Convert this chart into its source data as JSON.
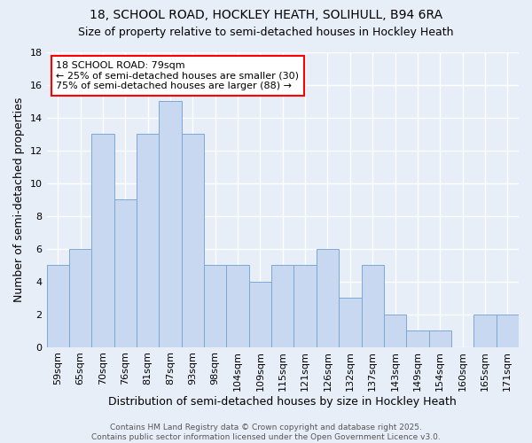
{
  "title": "18, SCHOOL ROAD, HOCKLEY HEATH, SOLIHULL, B94 6RA",
  "subtitle": "Size of property relative to semi-detached houses in Hockley Heath",
  "xlabel": "Distribution of semi-detached houses by size in Hockley Heath",
  "ylabel": "Number of semi-detached properties",
  "categories": [
    "59sqm",
    "65sqm",
    "70sqm",
    "76sqm",
    "81sqm",
    "87sqm",
    "93sqm",
    "98sqm",
    "104sqm",
    "109sqm",
    "115sqm",
    "121sqm",
    "126sqm",
    "132sqm",
    "137sqm",
    "143sqm",
    "149sqm",
    "154sqm",
    "160sqm",
    "165sqm",
    "171sqm"
  ],
  "values": [
    5,
    6,
    13,
    9,
    13,
    15,
    13,
    5,
    5,
    4,
    5,
    5,
    6,
    3,
    5,
    2,
    1,
    1,
    0,
    2,
    2
  ],
  "bar_color": "#c8d8f0",
  "bar_edge_color": "#7ba8d4",
  "background_color": "#e8eef8",
  "grid_color": "#ffffff",
  "annotation_text": "18 SCHOOL ROAD: 79sqm\n← 25% of semi-detached houses are smaller (30)\n75% of semi-detached houses are larger (88) →",
  "ylim": [
    0,
    18
  ],
  "yticks": [
    0,
    2,
    4,
    6,
    8,
    10,
    12,
    14,
    16,
    18
  ],
  "footer_text": "Contains HM Land Registry data © Crown copyright and database right 2025.\nContains public sector information licensed under the Open Government Licence v3.0.",
  "title_fontsize": 10,
  "subtitle_fontsize": 9,
  "axis_label_fontsize": 9,
  "tick_fontsize": 8,
  "annotation_fontsize": 8,
  "footer_fontsize": 6.5
}
